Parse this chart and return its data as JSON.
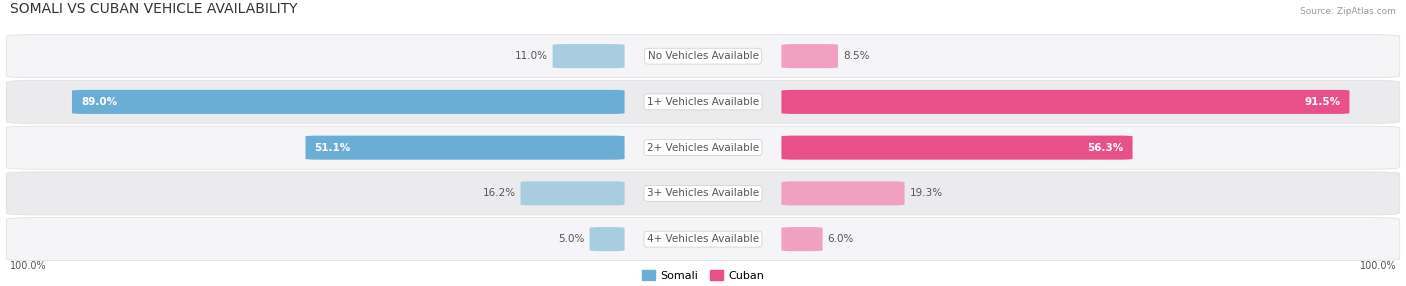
{
  "title": "SOMALI VS CUBAN VEHICLE AVAILABILITY",
  "source": "Source: ZipAtlas.com",
  "categories": [
    "No Vehicles Available",
    "1+ Vehicles Available",
    "2+ Vehicles Available",
    "3+ Vehicles Available",
    "4+ Vehicles Available"
  ],
  "somali_values": [
    11.0,
    89.0,
    51.1,
    16.2,
    5.0
  ],
  "cuban_values": [
    8.5,
    91.5,
    56.3,
    19.3,
    6.0
  ],
  "somali_color_large": "#6aaed6",
  "somali_color_small": "#a8cce0",
  "cuban_color_large": "#e8508a",
  "cuban_color_small": "#f0a0c0",
  "bg_color": "#ffffff",
  "row_color_odd": "#f5f5f7",
  "row_color_even": "#ebebee",
  "label_color": "#555555",
  "white_text": "#ffffff",
  "max_val": 100.0,
  "bar_height": 0.52,
  "title_fontsize": 10,
  "label_fontsize": 7.5,
  "category_fontsize": 7.5,
  "legend_fontsize": 8,
  "footer_fontsize": 7,
  "large_threshold": 30
}
